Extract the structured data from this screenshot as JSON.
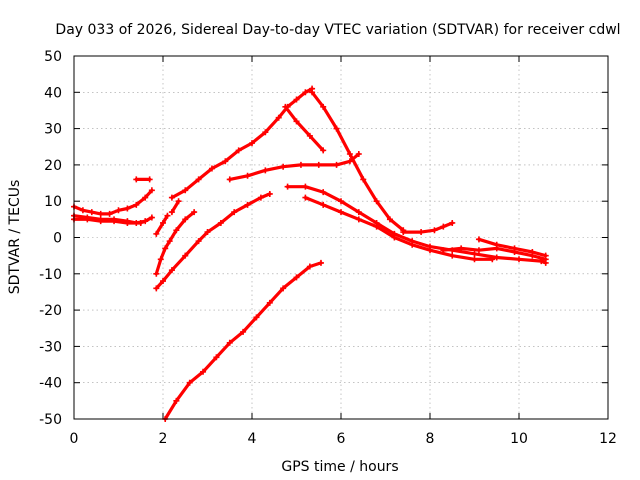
{
  "chart_data": {
    "type": "scatter",
    "title": "Day 033 of 2026, Sidereal Day-to-day VTEC variation (SDTVAR) for receiver cdwl",
    "xlabel": "GPS time / hours",
    "ylabel": "SDTVAR / TECUs",
    "xlim": [
      0,
      12
    ],
    "ylim": [
      -50,
      50
    ],
    "xticks": [
      0,
      2,
      4,
      6,
      8,
      10,
      12
    ],
    "yticks": [
      -50,
      -40,
      -30,
      -20,
      -10,
      0,
      10,
      20,
      30,
      40,
      50
    ],
    "grid": true,
    "marker": "+",
    "color": "#ff0000",
    "series": [
      {
        "x": [
          0,
          0.2,
          0.4,
          0.6,
          0.8,
          1.0,
          1.2,
          1.4,
          1.6,
          1.75
        ],
        "y": [
          8.5,
          7.5,
          7,
          6.5,
          6.5,
          7.5,
          8,
          9,
          11,
          13
        ]
      },
      {
        "x": [
          0,
          0.3,
          0.6,
          0.9,
          1.2,
          1.4,
          1.6,
          1.75
        ],
        "y": [
          6,
          5.5,
          5,
          5,
          4.5,
          4,
          4.5,
          5.5
        ]
      },
      {
        "x": [
          0,
          0.3,
          0.6,
          0.9,
          1.2,
          1.5
        ],
        "y": [
          5,
          5,
          4.5,
          4.5,
          4,
          4
        ]
      },
      {
        "x": [
          1.4,
          1.7
        ],
        "y": [
          16,
          16
        ]
      },
      {
        "x": [
          1.85,
          2.0,
          2.1
        ],
        "y": [
          1,
          4,
          6
        ]
      },
      {
        "x": [
          1.85,
          1.95,
          2.05,
          2.15,
          2.3,
          2.5,
          2.7
        ],
        "y": [
          -10,
          -6,
          -3,
          -1,
          2,
          5,
          7
        ]
      },
      {
        "x": [
          2.2,
          2.35
        ],
        "y": [
          7,
          10
        ]
      },
      {
        "x": [
          2.2,
          2.5,
          2.8,
          3.1,
          3.4,
          3.7,
          4.0,
          4.3,
          4.6,
          4.8,
          5.0,
          5.2,
          5.35
        ],
        "y": [
          11,
          13,
          16,
          19,
          21,
          24,
          26,
          29,
          33,
          36,
          38,
          40,
          41
        ]
      },
      {
        "x": [
          4.75,
          5.0,
          5.3,
          5.6
        ],
        "y": [
          36,
          32,
          28,
          24
        ]
      },
      {
        "x": [
          5.35,
          5.6,
          5.9,
          6.2,
          6.5,
          6.8,
          7.1,
          7.4
        ],
        "y": [
          40,
          36,
          30,
          23,
          16,
          10,
          5,
          2
        ]
      },
      {
        "x": [
          7.4,
          7.8,
          8.1,
          8.3,
          8.5
        ],
        "y": [
          1.5,
          1.5,
          2,
          3,
          4
        ]
      },
      {
        "x": [
          1.85,
          2.0,
          2.2,
          2.5,
          2.8,
          3.0,
          3.3,
          3.6,
          3.9,
          4.2,
          4.4
        ],
        "y": [
          -14,
          -12,
          -9,
          -5,
          -1,
          1.5,
          4,
          7,
          9,
          11,
          12
        ]
      },
      {
        "x": [
          3.5,
          3.9,
          4.3,
          4.7,
          5.1,
          5.5,
          5.9,
          6.2,
          6.4
        ],
        "y": [
          16,
          17,
          18.5,
          19.5,
          20,
          20,
          20,
          21,
          23
        ]
      },
      {
        "x": [
          4.8,
          5.2,
          5.6,
          6.0,
          6.4,
          6.8,
          7.2,
          7.6,
          8.0,
          8.5,
          9.0,
          9.5,
          10.0,
          10.5,
          10.6
        ],
        "y": [
          14,
          14,
          12.5,
          10,
          7,
          4,
          1,
          -1,
          -2.5,
          -3.5,
          -4.5,
          -5.5,
          -6,
          -6.5,
          -7
        ]
      },
      {
        "x": [
          5.2,
          5.6,
          6.0,
          6.4,
          6.8,
          7.2,
          7.6,
          8.0,
          8.5,
          9.0,
          9.4
        ],
        "y": [
          11,
          9,
          7,
          5,
          3,
          0,
          -2,
          -3.5,
          -5,
          -6,
          -6
        ]
      },
      {
        "x": [
          8.3,
          8.7,
          9.1,
          9.5,
          9.9,
          10.3,
          10.6
        ],
        "y": [
          -3.5,
          -3,
          -3.5,
          -3,
          -4,
          -5,
          -6
        ]
      },
      {
        "x": [
          9.1,
          9.5,
          9.9,
          10.3,
          10.6
        ],
        "y": [
          -0.5,
          -2,
          -3,
          -4,
          -5
        ]
      },
      {
        "x": [
          2.05,
          2.3,
          2.6,
          2.9,
          3.2,
          3.5,
          3.8,
          4.1,
          4.4,
          4.7,
          5.0,
          5.3,
          5.55
        ],
        "y": [
          -50,
          -45,
          -40,
          -37,
          -33,
          -29,
          -26,
          -22,
          -18,
          -14,
          -11,
          -8,
          -7
        ]
      }
    ]
  }
}
